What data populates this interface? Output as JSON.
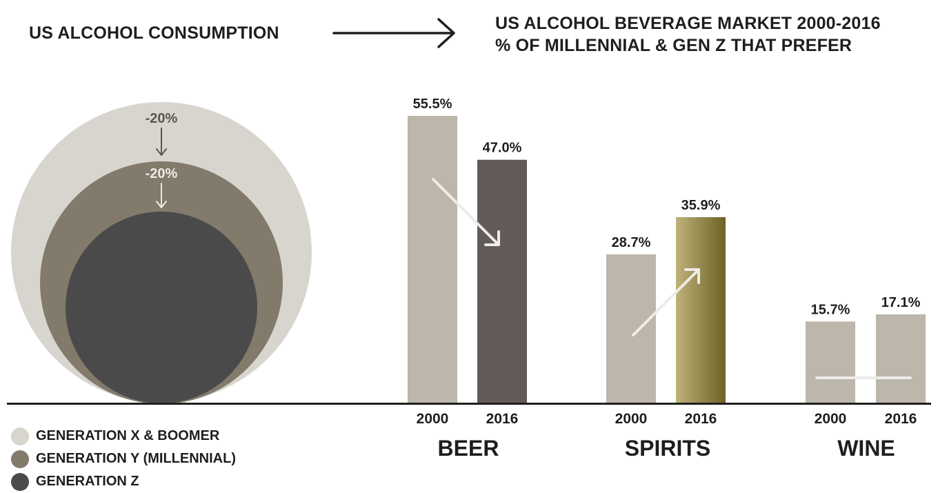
{
  "titles": {
    "left": "US ALCOHOL CONSUMPTION",
    "right_line1": "US ALCOHOL BEVERAGE MARKET 2000-2016",
    "right_line2": "% OF MILLENNIAL & GEN Z THAT PREFER"
  },
  "consumption": {
    "circles": [
      {
        "label": "GENERATION X & BOOMER",
        "color": "#d8d5cf",
        "relative_size": 1.0
      },
      {
        "label": "GENERATION Y (MILLENNIAL)",
        "color": "#827a6a",
        "relative_size": 0.8
      },
      {
        "label": "GENERATION Z",
        "color": "#4a4a4a",
        "relative_size": 0.64
      }
    ],
    "changes": [
      "-20%",
      "-20%"
    ]
  },
  "colors": {
    "bar_default": "#bcb6ab",
    "beer_2016": "#625b58",
    "spirits_2016_light": "#bfb27a",
    "spirits_2016_dark": "#6e6127",
    "baseline": "#1e1e1e",
    "trend_arrow": "#eeece8"
  },
  "chart_data": {
    "type": "bar",
    "categories": [
      "BEER",
      "SPIRITS",
      "WINE"
    ],
    "x": [
      "2000",
      "2016"
    ],
    "series": [
      {
        "name": "2000",
        "values": [
          55.5,
          28.7,
          15.7
        ],
        "labels": [
          "55.5%",
          "28.7%",
          "15.7%"
        ]
      },
      {
        "name": "2016",
        "values": [
          47.0,
          35.9,
          17.1
        ],
        "labels": [
          "47.0%",
          "35.9%",
          "17.1%"
        ]
      }
    ],
    "trends": [
      "down",
      "up",
      "flat"
    ],
    "ylim": [
      0,
      55.5
    ],
    "title": "US ALCOHOL BEVERAGE MARKET 2000-2016",
    "subtitle": "% OF MILLENNIAL & GEN Z THAT PREFER",
    "xlabel": "",
    "ylabel": "",
    "grid": false
  }
}
